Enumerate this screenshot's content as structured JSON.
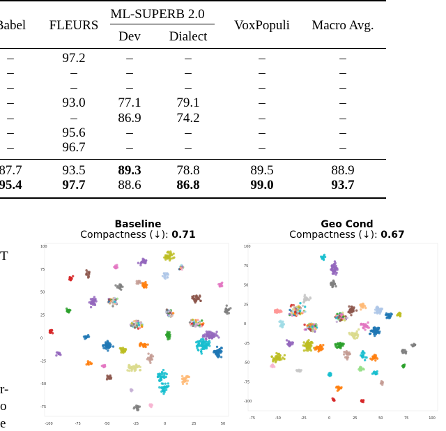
{
  "table": {
    "headers": {
      "babel": "Babel",
      "fleurs": "FLEURS",
      "ml_superb": "ML-SUPERB 2.0",
      "dev": "Dev",
      "dialect": "Dialect",
      "voxpopuli": "VoxPopuli",
      "macro_avg": "Macro Avg."
    },
    "rows": [
      {
        "babel": "–",
        "fleurs": "97.2",
        "dev": "–",
        "dialect": "–",
        "voxpopuli": "–",
        "macro": "–"
      },
      {
        "babel": "–",
        "fleurs": "–",
        "dev": "–",
        "dialect": "–",
        "voxpopuli": "–",
        "macro": "–"
      },
      {
        "babel": "–",
        "fleurs": "–",
        "dev": "–",
        "dialect": "–",
        "voxpopuli": "–",
        "macro": "–"
      },
      {
        "babel": "–",
        "fleurs": "93.0",
        "dev": "77.1",
        "dialect": "79.1",
        "voxpopuli": "–",
        "macro": "–"
      },
      {
        "babel": "–",
        "fleurs": "–",
        "dev": "86.9",
        "dialect": "74.2",
        "voxpopuli": "–",
        "macro": "–"
      },
      {
        "babel": "–",
        "fleurs": "95.6",
        "dev": "–",
        "dialect": "–",
        "voxpopuli": "–",
        "macro": "–"
      },
      {
        "babel": "–",
        "fleurs": "96.7",
        "dev": "–",
        "dialect": "–",
        "voxpopuli": "–",
        "macro": "–"
      },
      {
        "babel": "87.7",
        "fleurs": "93.5",
        "dev": "89.3",
        "dialect": "78.8",
        "voxpopuli": "89.5",
        "macro": "88.9"
      },
      {
        "babel": "95.4",
        "fleurs": "97.7",
        "dev": "88.6",
        "dialect": "86.8",
        "voxpopuli": "99.0",
        "macro": "93.7"
      }
    ]
  },
  "margin_text": [
    "T",
    "r-",
    "o",
    "e"
  ],
  "plots": [
    {
      "title": "Baseline",
      "subtitle_prefix": "Compactness (↓): ",
      "compactness": "0.71",
      "y_ticks": [
        "100",
        "75",
        "50",
        "25",
        "0",
        "-25",
        "-50",
        "-75"
      ],
      "x_ticks": [
        "-100",
        "-75",
        "-50",
        "-25",
        "0",
        "25",
        "50"
      ]
    },
    {
      "title": "Geo Cond",
      "subtitle_prefix": "Compactness (↓): ",
      "compactness": "0.67",
      "y_ticks": [
        "100",
        "75",
        "50",
        "25",
        "0",
        "-25",
        "-50",
        "-75",
        "-100"
      ],
      "x_ticks": [
        "-75",
        "-50",
        "-25",
        "0",
        "25",
        "50",
        "75",
        "100"
      ]
    }
  ],
  "colors": {
    "palette": [
      "#1f77b4",
      "#ff7f0e",
      "#2ca02c",
      "#d62728",
      "#9467bd",
      "#8c564b",
      "#e377c2",
      "#7f7f7f",
      "#bcbd22",
      "#17becf",
      "#aec7e8",
      "#ffbb78",
      "#98df8a",
      "#ff9896",
      "#c5b0d5",
      "#c49c94",
      "#f7b6d2",
      "#c7c7c7",
      "#dbdb8d",
      "#9edae5"
    ]
  }
}
